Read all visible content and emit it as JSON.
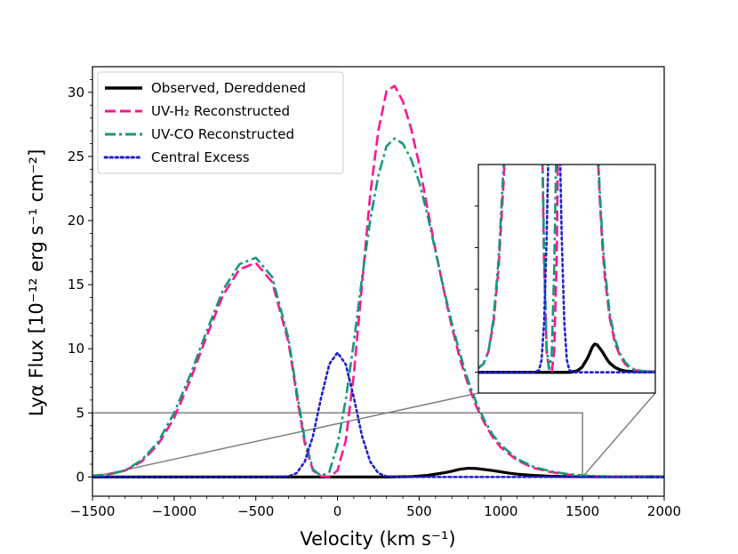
{
  "chart_data": {
    "type": "line",
    "xlabel": "Velocity (km s⁻¹)",
    "ylabel": "Lyα Flux [10⁻¹² erg s⁻¹ cm⁻²]",
    "xlim": [
      -1500,
      2000
    ],
    "ylim": [
      -1.5,
      32
    ],
    "xticks": [
      -1500,
      -1000,
      -500,
      0,
      500,
      1000,
      1500,
      2000
    ],
    "xtick_labels": [
      "−1500",
      "−1000",
      "−500",
      "0",
      "500",
      "1000",
      "1500",
      "2000"
    ],
    "yticks": [
      0,
      5,
      10,
      15,
      20,
      25,
      30
    ],
    "ytick_labels": [
      "0",
      "5",
      "10",
      "15",
      "20",
      "25",
      "30"
    ],
    "legend_position": "top-left",
    "series": [
      {
        "name": "Observed, Dereddened",
        "color": "#000000",
        "style": "solid",
        "x": [
          -1500,
          -1000,
          -500,
          0,
          300,
          450,
          550,
          650,
          700,
          750,
          800,
          850,
          900,
          950,
          1000,
          1050,
          1100,
          1200,
          1300,
          1400,
          1500,
          2000
        ],
        "y": [
          0,
          0,
          0,
          0,
          0,
          0.03,
          0.12,
          0.32,
          0.45,
          0.6,
          0.68,
          0.66,
          0.58,
          0.5,
          0.4,
          0.3,
          0.22,
          0.12,
          0.06,
          0.03,
          0.02,
          0.01
        ]
      },
      {
        "name": "UV-H₂ Reconstructed",
        "color": "#ff1493",
        "style": "dashed",
        "x": [
          -1500,
          -1400,
          -1300,
          -1200,
          -1100,
          -1000,
          -900,
          -800,
          -700,
          -600,
          -500,
          -400,
          -300,
          -250,
          -200,
          -150,
          -100,
          -50,
          0,
          50,
          100,
          150,
          200,
          250,
          300,
          350,
          400,
          450,
          500,
          550,
          600,
          650,
          700,
          750,
          800,
          850,
          900,
          950,
          1000,
          1100,
          1200,
          1300,
          1400,
          1500,
          1600,
          1800,
          2000
        ],
        "y": [
          0.1,
          0.2,
          0.5,
          1.2,
          2.5,
          4.6,
          7.6,
          11.0,
          14.2,
          16.2,
          16.7,
          15.2,
          10.5,
          6.4,
          2.6,
          0.5,
          0.05,
          0,
          0.5,
          2.8,
          8.0,
          15.0,
          22.0,
          27.0,
          30.1,
          30.5,
          29.3,
          27.2,
          24.4,
          21.0,
          17.7,
          14.6,
          11.7,
          9.2,
          7.2,
          5.5,
          4.2,
          3.1,
          2.3,
          1.3,
          0.7,
          0.4,
          0.2,
          0.1,
          0.05,
          0.02,
          0.01
        ]
      },
      {
        "name": "UV-CO Reconstructed",
        "color": "#16987a",
        "style": "dashdot",
        "x": [
          -1500,
          -1400,
          -1300,
          -1200,
          -1100,
          -1000,
          -900,
          -800,
          -700,
          -600,
          -500,
          -400,
          -300,
          -250,
          -200,
          -150,
          -100,
          -50,
          0,
          50,
          100,
          150,
          200,
          250,
          300,
          350,
          400,
          450,
          500,
          550,
          600,
          650,
          700,
          750,
          800,
          850,
          900,
          950,
          1000,
          1100,
          1200,
          1300,
          1400,
          1500,
          1600,
          1800,
          2000
        ],
        "y": [
          0.1,
          0.2,
          0.5,
          1.3,
          2.7,
          5.0,
          8.0,
          11.4,
          14.6,
          16.6,
          17.1,
          15.6,
          10.8,
          6.7,
          2.9,
          0.6,
          0.08,
          0.4,
          2.5,
          6.0,
          10.5,
          15.5,
          20.0,
          23.5,
          25.8,
          26.4,
          26.0,
          24.8,
          23.0,
          20.5,
          17.6,
          14.7,
          12.0,
          9.6,
          7.5,
          5.8,
          4.4,
          3.3,
          2.5,
          1.4,
          0.8,
          0.45,
          0.25,
          0.12,
          0.06,
          0.02,
          0.01
        ]
      },
      {
        "name": "Central Excess",
        "color": "#1f1fcf",
        "style": "dotted",
        "x": [
          -1500,
          -400,
          -300,
          -250,
          -200,
          -150,
          -100,
          -50,
          0,
          50,
          100,
          150,
          200,
          250,
          300,
          400,
          2000
        ],
        "y": [
          0,
          0,
          0.05,
          0.3,
          1.2,
          3.2,
          6.2,
          8.8,
          9.7,
          8.8,
          6.2,
          3.2,
          1.2,
          0.3,
          0.05,
          0,
          0
        ]
      }
    ],
    "inset": {
      "xlim": [
        -1500,
        2000
      ],
      "ylim": [
        -0.5,
        5
      ],
      "zoom_box": {
        "x": [
          -1500,
          1500
        ],
        "y": [
          0,
          5
        ]
      }
    }
  }
}
